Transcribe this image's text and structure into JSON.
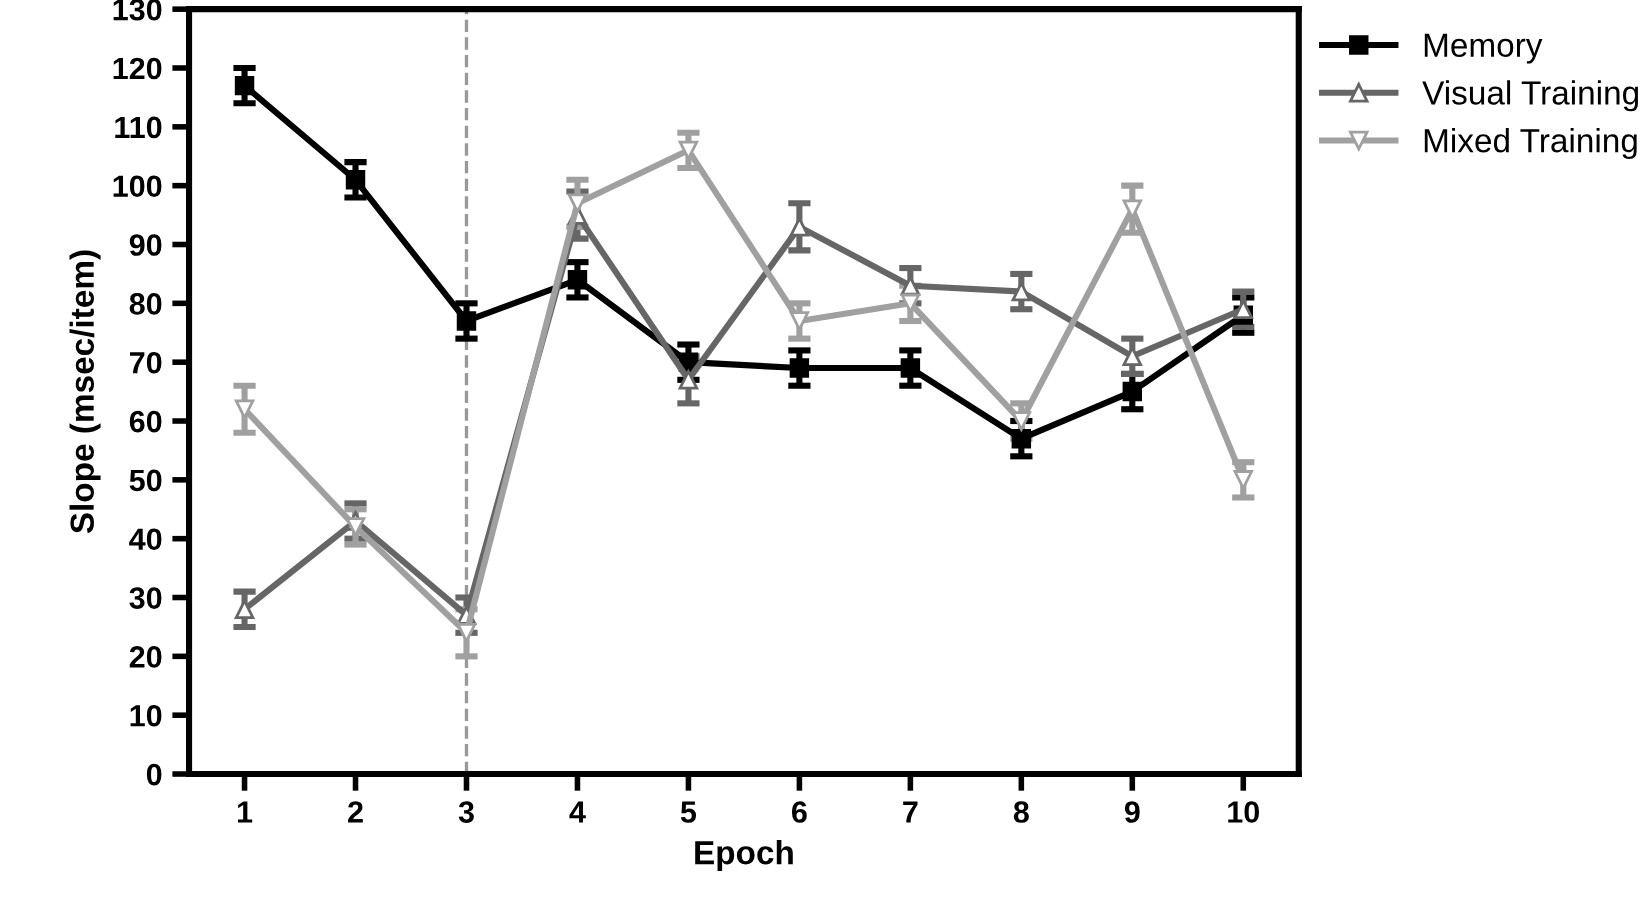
{
  "chart_data": {
    "type": "line",
    "xlabel": "Epoch",
    "ylabel": "Slope (msec/item)",
    "x": [
      1,
      2,
      3,
      4,
      5,
      6,
      7,
      8,
      9,
      10
    ],
    "xlim": [
      0.5,
      10.5
    ],
    "xticks": [
      1,
      2,
      3,
      4,
      5,
      6,
      7,
      8,
      9,
      10
    ],
    "ylim": [
      0,
      130
    ],
    "yticks": [
      0,
      10,
      20,
      30,
      40,
      50,
      60,
      70,
      80,
      90,
      100,
      110,
      120,
      130
    ],
    "grid": false,
    "legend": "top right",
    "line_style": "solid",
    "ref_lines": [
      {
        "axis": "x",
        "value": 3,
        "color": "#999999",
        "line_style": "dashed"
      }
    ],
    "series": [
      {
        "name": "Memory",
        "color": "#000000",
        "marker": "square",
        "values": [
          117,
          101,
          77,
          84,
          70,
          69,
          69,
          57,
          65,
          78
        ],
        "errors": [
          3,
          3,
          3,
          3,
          3,
          3,
          3,
          3,
          3,
          3
        ]
      },
      {
        "name": "Visual Training",
        "color": "#666666",
        "marker": "triangle",
        "values": [
          28,
          43,
          27,
          95,
          67,
          93,
          83,
          82,
          71,
          79
        ],
        "errors": [
          3,
          3,
          3,
          4,
          4,
          4,
          3,
          3,
          3,
          3
        ]
      },
      {
        "name": "Mixed Training",
        "color": "#a0a0a0",
        "marker": "triangle_down",
        "values": [
          62,
          42,
          24,
          97,
          106,
          77,
          80,
          60,
          96,
          50
        ],
        "errors": [
          4,
          3,
          4,
          4,
          3,
          3,
          3,
          3,
          4,
          3
        ]
      }
    ]
  }
}
